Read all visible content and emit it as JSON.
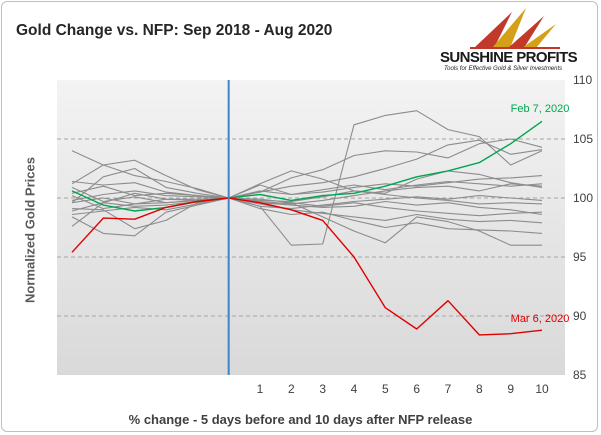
{
  "title": "Gold Change vs. NFP: Sep 2018 - Aug 2020",
  "logo": {
    "name": "SUNSHINE PROFITS",
    "tagline": "Tools for Effective Gold & Silver Investments"
  },
  "chart_data": {
    "type": "line",
    "title": "Gold Change vs. NFP: Sep 2018 - Aug 2020",
    "xlabel": "% change - 5 days before and 10 days after NFP release",
    "ylabel": "Normalized Gold Prices",
    "x": [
      -5,
      -4,
      -3,
      -2,
      -1,
      0,
      1,
      2,
      3,
      4,
      5,
      6,
      7,
      8,
      9,
      10
    ],
    "x_tick_labels": [
      "",
      "",
      "",
      "",
      "",
      "",
      "1",
      "2",
      "3",
      "4",
      "5",
      "6",
      "7",
      "8",
      "9",
      "10"
    ],
    "ylim": [
      85,
      110
    ],
    "yticks": [
      85,
      90,
      95,
      100,
      105,
      110
    ],
    "y_axis_side": "right",
    "grid": "horizontal dashed",
    "vertical_marker_at_x": 0,
    "colors": {
      "background_gradient": [
        "#f2f2f2",
        "#dadada"
      ],
      "grey": "#8c8c8c",
      "green": "#00a651",
      "red": "#e00000",
      "marker": "#3d85c6"
    },
    "series": [
      {
        "name": "Feb 7, 2020",
        "color": "#00a651",
        "values": [
          100.6,
          99.4,
          98.9,
          99.2,
          99.7,
          100.0,
          100.3,
          99.8,
          100.2,
          100.4,
          101.0,
          101.8,
          102.3,
          103.0,
          104.6,
          106.5
        ]
      },
      {
        "name": "Mar 6, 2020",
        "color": "#e00000",
        "values": [
          95.4,
          98.3,
          98.2,
          99.2,
          99.7,
          100.0,
          99.6,
          99.0,
          98.1,
          95.0,
          90.7,
          88.9,
          91.3,
          88.4,
          88.5,
          88.8
        ]
      },
      {
        "values": [
          104.0,
          102.8,
          103.2,
          101.9,
          100.7,
          100.0,
          99.3,
          96.0,
          96.1,
          106.2,
          107.0,
          107.4,
          105.8,
          105.2,
          102.8,
          104.0
        ]
      },
      {
        "values": [
          99.6,
          101.8,
          102.5,
          100.9,
          100.4,
          100.0,
          100.5,
          101.7,
          102.4,
          103.6,
          104.0,
          103.9,
          103.4,
          104.6,
          105.0,
          104.3
        ]
      },
      {
        "values": [
          100.2,
          99.1,
          99.5,
          99.6,
          99.8,
          100.0,
          100.5,
          101.0,
          101.3,
          101.8,
          102.5,
          103.3,
          104.5,
          104.9,
          103.7,
          104.1
        ]
      },
      {
        "values": [
          101.2,
          102.8,
          101.9,
          101.4,
          100.8,
          100.0,
          101.2,
          102.3,
          101.6,
          100.6,
          100.4,
          101.6,
          102.3,
          102.0,
          101.3,
          100.9
        ]
      },
      {
        "values": [
          98.4,
          97.0,
          96.8,
          98.8,
          99.4,
          100.0,
          101.1,
          100.3,
          100.7,
          101.1,
          100.7,
          101.1,
          101.4,
          101.2,
          101.0,
          101.2
        ]
      },
      {
        "values": [
          97.6,
          99.6,
          100.4,
          99.9,
          99.8,
          100.0,
          99.7,
          99.5,
          99.8,
          100.2,
          100.6,
          100.9,
          101.0,
          100.6,
          101.2,
          101.0
        ]
      },
      {
        "values": [
          99.1,
          99.0,
          97.4,
          98.1,
          99.6,
          100.0,
          99.5,
          99.0,
          98.7,
          98.4,
          98.1,
          98.6,
          98.2,
          98.0,
          98.1,
          97.9
        ]
      },
      {
        "values": [
          98.9,
          99.6,
          99.3,
          99.4,
          99.7,
          100.0,
          99.3,
          99.1,
          99.4,
          99.7,
          99.9,
          100.1,
          99.9,
          100.2,
          100.0,
          99.8
        ]
      },
      {
        "values": [
          100.9,
          99.7,
          100.1,
          99.6,
          99.8,
          100.0,
          99.1,
          98.6,
          98.8,
          98.1,
          97.5,
          97.9,
          97.4,
          97.3,
          97.2,
          97.0
        ]
      },
      {
        "values": [
          99.6,
          100.0,
          99.5,
          99.9,
          99.9,
          100.0,
          99.5,
          99.6,
          98.4,
          97.2,
          96.2,
          98.4,
          98.0,
          97.2,
          96.0,
          96.0
        ]
      },
      {
        "values": [
          100.4,
          101.0,
          100.2,
          100.4,
          100.2,
          100.0,
          99.8,
          99.7,
          100.1,
          100.6,
          100.3,
          100.0,
          99.8,
          99.5,
          99.6,
          99.5
        ]
      },
      {
        "values": [
          99.8,
          100.3,
          100.6,
          100.2,
          100.1,
          100.0,
          99.9,
          99.6,
          99.3,
          99.6,
          99.2,
          98.9,
          98.7,
          98.5,
          98.7,
          98.8
        ]
      },
      {
        "values": [
          101.4,
          101.1,
          101.3,
          100.5,
          100.2,
          100.0,
          100.6,
          100.3,
          100.5,
          100.9,
          101.2,
          101.0,
          101.3,
          101.6,
          101.7,
          101.9
        ]
      },
      {
        "values": [
          98.6,
          98.9,
          99.2,
          99.0,
          99.5,
          100.0,
          99.6,
          99.4,
          99.2,
          99.3,
          99.7,
          99.4,
          99.6,
          99.2,
          99.0,
          98.6
        ]
      }
    ],
    "annotations": [
      {
        "text": "Feb 7, 2020",
        "color": "#00a651",
        "x": 9.0,
        "y": 107.3
      },
      {
        "text": "Mar 6, 2020",
        "color": "#e00000",
        "x": 9.0,
        "y": 89.5
      }
    ]
  }
}
